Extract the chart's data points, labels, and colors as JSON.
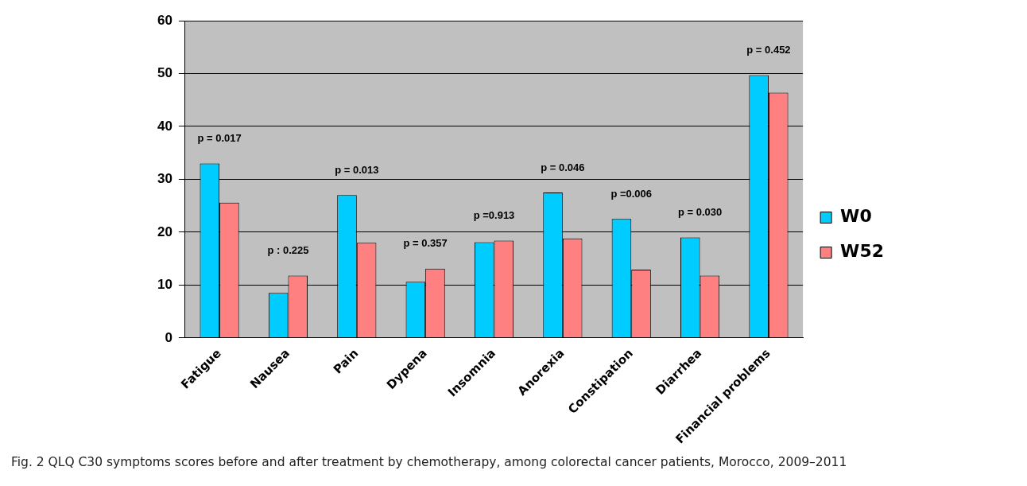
{
  "chart_data": {
    "type": "bar",
    "categories": [
      "Fatigue",
      "Nausea",
      "Pain",
      "Dypena",
      "Insomnia",
      "Anorexia",
      "Constipation",
      "Diarrhea",
      "Financial problems"
    ],
    "series": [
      {
        "name": "W0",
        "color": "#00ccff",
        "values": [
          33,
          8.5,
          27,
          10.6,
          18.1,
          27.5,
          22.5,
          19,
          49.7
        ]
      },
      {
        "name": "W52",
        "color": "#ff8080",
        "values": [
          25.6,
          11.8,
          18,
          13.1,
          18.4,
          18.8,
          12.9,
          11.8,
          46.4
        ]
      }
    ],
    "ylim": [
      0,
      60
    ],
    "yticks": [
      0,
      10,
      20,
      30,
      40,
      50,
      60
    ],
    "grid": "y",
    "legend": "right",
    "annotations": [
      {
        "text": "p = 0.017",
        "x": "Fatigue",
        "y": 33
      },
      {
        "text": "p : 0.225",
        "x": "Nausea",
        "y": 11.8
      },
      {
        "text": "p = 0.013",
        "x": "Pain",
        "y": 27
      },
      {
        "text": "p = 0.357",
        "x": "Dypena",
        "y": 13.1
      },
      {
        "text": "p =0.913",
        "x": "Insomnia",
        "y": 18.4
      },
      {
        "text": "p = 0.046",
        "x": "Anorexia",
        "y": 27.5
      },
      {
        "text": "p =0.006",
        "x": "Constipation",
        "y": 22.5
      },
      {
        "text": "p = 0.030",
        "x": "Diarrhea",
        "y": 19
      },
      {
        "text": "p = 0.452",
        "x": "Financial problems",
        "y": 49.7
      },
      "Fig. 2 QLQ C30 symptoms scores before and after treatment by chemotherapy, among colorectal cancer patients, Morocco, 2009–2011"
    ]
  }
}
